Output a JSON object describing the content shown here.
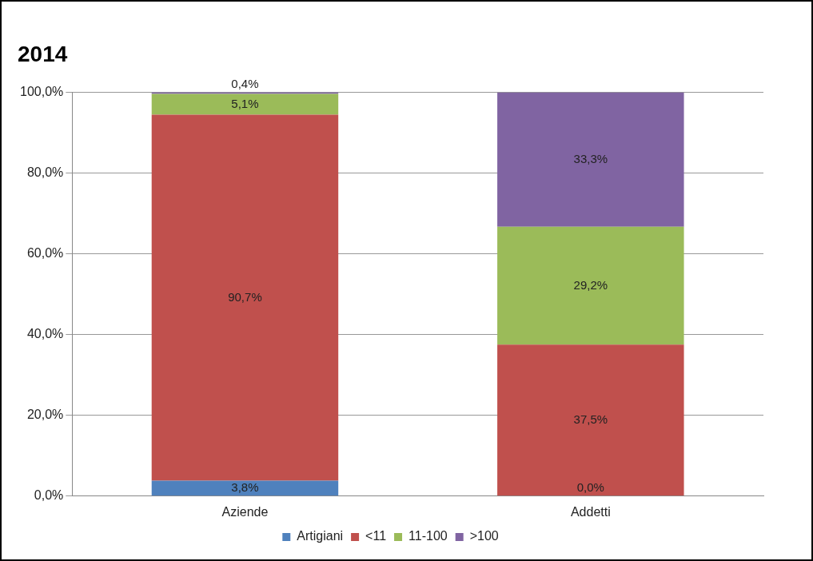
{
  "chart_data": {
    "type": "bar",
    "title": "2014",
    "categories": [
      "Aziende",
      "Addetti"
    ],
    "series": [
      {
        "name": "Artigiani",
        "color": "#4f81bd",
        "values": [
          3.8,
          0.0
        ],
        "value_labels": [
          "3,8%",
          "0,0%"
        ]
      },
      {
        "name": "<11",
        "color": "#c0504d",
        "values": [
          90.7,
          37.5
        ],
        "value_labels": [
          "90,7%",
          "37,5%"
        ]
      },
      {
        "name": "11-100",
        "color": "#9bbb59",
        "values": [
          5.1,
          29.2
        ],
        "value_labels": [
          "5,1%",
          "29,2%"
        ]
      },
      {
        "name": ">100",
        "color": "#8064a2",
        "values": [
          0.4,
          33.3
        ],
        "value_labels": [
          "0,4%",
          "33,3%"
        ]
      }
    ],
    "ylim": [
      0,
      100
    ],
    "yticks": [
      {
        "value": 0,
        "label": "0,0%"
      },
      {
        "value": 20,
        "label": "20,0%"
      },
      {
        "value": 40,
        "label": "40,0%"
      },
      {
        "value": 60,
        "label": "60,0%"
      },
      {
        "value": 80,
        "label": "80,0%"
      },
      {
        "value": 100,
        "label": "100,0%"
      }
    ],
    "stacked": true,
    "grid": true,
    "legend": "bottom",
    "data_labels": true
  }
}
